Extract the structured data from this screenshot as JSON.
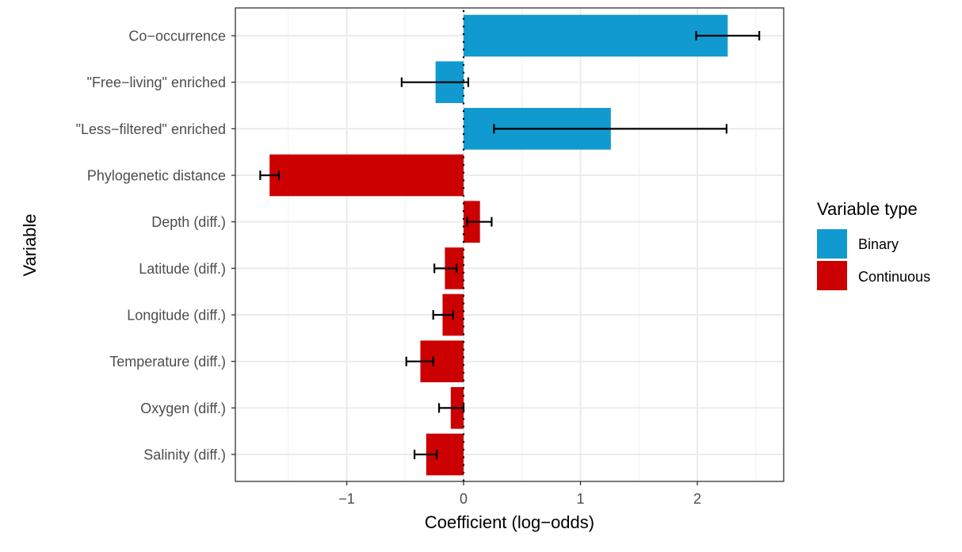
{
  "chart_data": {
    "type": "bar",
    "orientation": "horizontal",
    "title": "",
    "xlabel": "Coefficient (log−odds)",
    "ylabel": "Variable",
    "xlim": [
      -1.953,
      2.739
    ],
    "xticks": [
      -1,
      0,
      1,
      2
    ],
    "xtick_labels": [
      "−1",
      "0",
      "1",
      "2"
    ],
    "grid": true,
    "reference_line": {
      "x": 0,
      "style": "dotted"
    },
    "categories": [
      "Co−occurrence",
      "\"Free−living\" enriched",
      "\"Less−filtered\" enriched",
      "Phylogenetic distance",
      "Depth (diff.)",
      "Latitude (diff.)",
      "Longitude (diff.)",
      "Temperature (diff.)",
      "Oxygen (diff.)",
      "Salinity (diff.)"
    ],
    "values": [
      2.26,
      -0.24,
      1.26,
      -1.66,
      0.14,
      -0.16,
      -0.18,
      -0.37,
      -0.11,
      -0.32
    ],
    "error_low": [
      1.99,
      -0.53,
      0.26,
      -1.74,
      0.03,
      -0.25,
      -0.26,
      -0.49,
      -0.21,
      -0.42
    ],
    "error_high": [
      2.53,
      0.04,
      2.25,
      -1.58,
      0.24,
      -0.06,
      -0.09,
      -0.26,
      0.0,
      -0.23
    ],
    "variable_type": [
      "Binary",
      "Binary",
      "Binary",
      "Continuous",
      "Continuous",
      "Continuous",
      "Continuous",
      "Continuous",
      "Continuous",
      "Continuous"
    ],
    "legend": {
      "title": "Variable type",
      "placement": "right",
      "entries": [
        {
          "label": "Binary",
          "color": "#119ACF"
        },
        {
          "label": "Continuous",
          "color": "#CC0000"
        }
      ]
    }
  }
}
